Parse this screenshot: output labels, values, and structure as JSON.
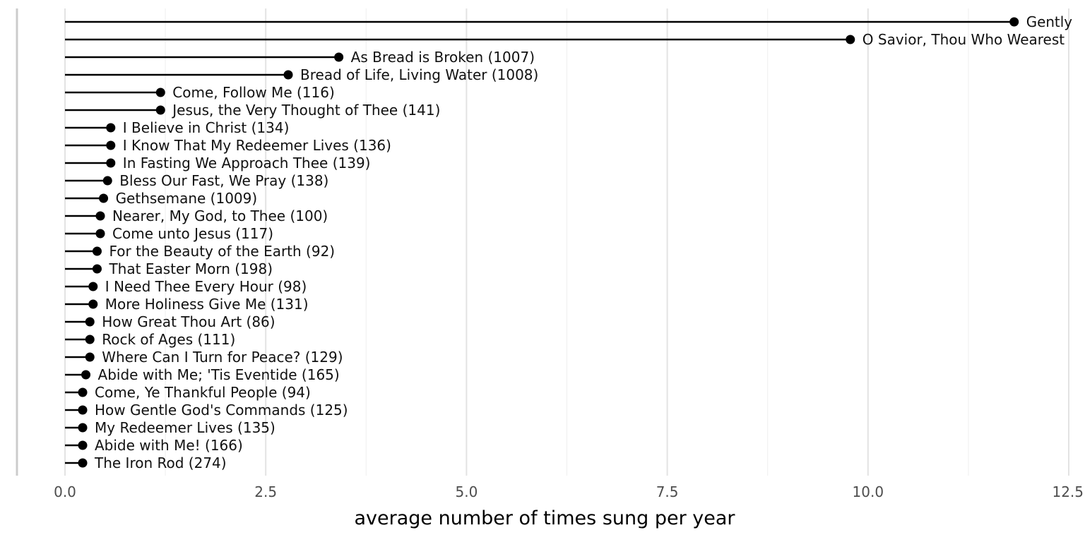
{
  "chart_data": {
    "type": "lollipop",
    "xlabel": "average number of times sung per year",
    "xlim": [
      0,
      12.5
    ],
    "xticks": [
      0,
      2.5,
      5,
      7.5,
      10,
      12.5
    ],
    "xtick_labels": [
      "0.0",
      "2.5",
      "5.0",
      "7.5",
      "10.0",
      "12.5"
    ],
    "minor_xticks": [
      1.25,
      3.75,
      6.25,
      8.75,
      11.25
    ],
    "grid": true,
    "items": [
      {
        "label": "Gently",
        "value": 11.82
      },
      {
        "label": "O Savior, Thou Who Wearest",
        "value": 9.78
      },
      {
        "label": "As Bread is Broken (1007)",
        "value": 3.41
      },
      {
        "label": "Bread of Life, Living Water (1008)",
        "value": 2.78
      },
      {
        "label": "Come, Follow Me (116)",
        "value": 1.19
      },
      {
        "label": "Jesus, the Very Thought of Thee (141)",
        "value": 1.19
      },
      {
        "label": "I Believe in Christ (134)",
        "value": 0.57
      },
      {
        "label": "I Know That My Redeemer Lives (136)",
        "value": 0.57
      },
      {
        "label": "In Fasting We Approach Thee (139)",
        "value": 0.57
      },
      {
        "label": "Bless Our Fast, We Pray (138)",
        "value": 0.53
      },
      {
        "label": "Gethsemane (1009)",
        "value": 0.48
      },
      {
        "label": "Nearer, My God, to Thee (100)",
        "value": 0.44
      },
      {
        "label": "Come unto Jesus (117)",
        "value": 0.44
      },
      {
        "label": "For the Beauty of the Earth (92)",
        "value": 0.4
      },
      {
        "label": "That Easter Morn (198)",
        "value": 0.4
      },
      {
        "label": "I Need Thee Every Hour (98)",
        "value": 0.35
      },
      {
        "label": "More Holiness Give Me (131)",
        "value": 0.35
      },
      {
        "label": "How Great Thou Art (86)",
        "value": 0.31
      },
      {
        "label": "Rock of Ages (111)",
        "value": 0.31
      },
      {
        "label": "Where Can I Turn for Peace? (129)",
        "value": 0.31
      },
      {
        "label": "Abide with Me; 'Tis Eventide (165)",
        "value": 0.26
      },
      {
        "label": "Come, Ye Thankful People (94)",
        "value": 0.22
      },
      {
        "label": "How Gentle God's Commands (125)",
        "value": 0.22
      },
      {
        "label": "My Redeemer Lives (135)",
        "value": 0.22
      },
      {
        "label": "Abide with Me! (166)",
        "value": 0.22
      },
      {
        "label": "The Iron Rod (274)",
        "value": 0.22
      }
    ]
  }
}
